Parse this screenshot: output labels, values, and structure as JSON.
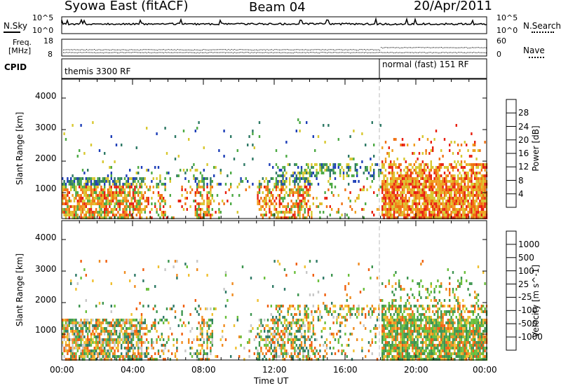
{
  "header": {
    "radar": "Syowa East (fitACF)",
    "beam": "Beam 04",
    "date": "20/Apr/2011"
  },
  "noise_panel": {
    "left_label": "N.Sky",
    "right_label": "N.Search",
    "left_ticks": [
      "10^5",
      "10^0"
    ],
    "right_ticks": [
      "10^5",
      "10^0"
    ]
  },
  "freq_panel": {
    "left_label_line1": "Freq.",
    "left_label_line2": "[MHz]",
    "right_label": "Nave",
    "left_ticks": [
      "18",
      "8"
    ],
    "right_ticks": [
      "60",
      "0"
    ]
  },
  "cpid_panel": {
    "label": "CPID",
    "segments": [
      {
        "text": "themis 3300 RF",
        "start_hour": 0
      },
      {
        "text": "normal (fast) 151 RF",
        "start_hour": 18
      }
    ]
  },
  "chart_data": [
    {
      "type": "heatmap",
      "name": "power",
      "ylabel": "Slant Range [km]",
      "yticks": [
        1000,
        2000,
        3000,
        4000
      ],
      "ylim": [
        180,
        4600
      ],
      "xlim": [
        0,
        24
      ],
      "colorbar": {
        "label": "Power [dB]",
        "ticks": [
          "4",
          "8",
          "12",
          "16",
          "20",
          "24",
          "28"
        ],
        "range": [
          0,
          32
        ],
        "colors": [
          "#0022ee",
          "#1e3fb8",
          "#2f7a66",
          "#4daa44",
          "#d8c830",
          "#f0a020",
          "#f07010",
          "#e82010"
        ]
      }
    },
    {
      "type": "heatmap",
      "name": "velocity",
      "ylabel": "Slant Range [km]",
      "yticks": [
        1000,
        2000,
        3000,
        4000
      ],
      "ylim": [
        180,
        4600
      ],
      "xlim": [
        0,
        24
      ],
      "xlabel": "Time UT",
      "xticks": [
        "00:00",
        "04:00",
        "08:00",
        "12:00",
        "16:00",
        "20:00",
        "00:00"
      ],
      "colorbar": {
        "label": "Velocity [m s^-1]",
        "ticks": [
          "1000",
          "500",
          "100",
          "25",
          "-25",
          "-100",
          "-500",
          "-1000"
        ],
        "colors": [
          "#1e3fb8",
          "#2f7a66",
          "#3e9650",
          "#6abf3c",
          "#c8c8c8",
          "#f0c030",
          "#f08c20",
          "#f06010",
          "#e82010"
        ]
      }
    }
  ],
  "colors": {
    "power_low": "#0022ee",
    "power_high": "#e82010",
    "grey": "#c8c8c8"
  }
}
